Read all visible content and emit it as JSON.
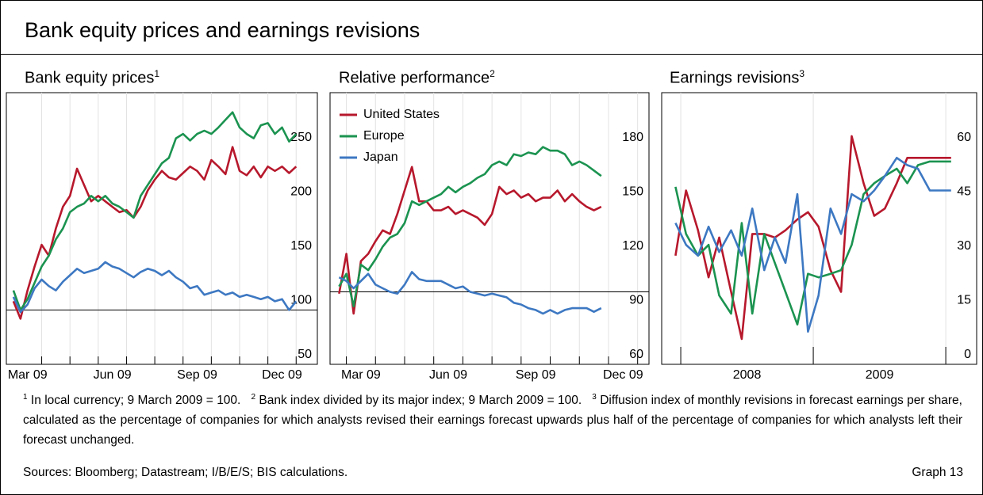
{
  "title": "Bank equity prices and earnings revisions",
  "chart_data": [
    {
      "type": "line",
      "title": "Bank equity prices",
      "title_note": "1",
      "x": [
        3.0,
        3.25,
        3.5,
        3.75,
        4.0,
        4.25,
        4.5,
        4.75,
        5.0,
        5.25,
        5.5,
        5.75,
        6.0,
        6.25,
        6.5,
        6.75,
        7.0,
        7.25,
        7.5,
        7.75,
        8.0,
        8.25,
        8.5,
        8.75,
        9.0,
        9.25,
        9.5,
        9.75,
        10.0,
        10.25,
        10.5,
        10.75,
        11.0,
        11.25,
        11.5,
        11.75,
        12.0,
        12.25,
        12.5,
        12.75,
        13.0
      ],
      "series": [
        {
          "color": "#b7182c",
          "values": [
            108,
            92,
            118,
            140,
            160,
            150,
            175,
            195,
            205,
            230,
            215,
            200,
            205,
            200,
            195,
            190,
            192,
            185,
            195,
            210,
            220,
            228,
            222,
            220,
            226,
            232,
            228,
            220,
            238,
            232,
            225,
            250,
            228,
            224,
            232,
            222,
            232,
            228,
            232,
            226,
            232
          ]
        },
        {
          "color": "#1b9350",
          "values": [
            118,
            100,
            110,
            125,
            140,
            150,
            165,
            175,
            190,
            195,
            198,
            205,
            200,
            205,
            198,
            195,
            190,
            185,
            205,
            215,
            225,
            235,
            240,
            258,
            262,
            256,
            262,
            265,
            262,
            268,
            275,
            282,
            268,
            262,
            258,
            270,
            272,
            262,
            268,
            255,
            262
          ]
        },
        {
          "color": "#3d78c2",
          "values": [
            112,
            98,
            105,
            120,
            128,
            122,
            118,
            126,
            132,
            138,
            134,
            136,
            138,
            144,
            140,
            138,
            134,
            130,
            135,
            138,
            136,
            132,
            136,
            130,
            126,
            120,
            122,
            114,
            116,
            118,
            114,
            116,
            112,
            114,
            112,
            110,
            112,
            108,
            110,
            100,
            108
          ]
        }
      ],
      "xlim": [
        2.75,
        13.75
      ],
      "xticks": [
        {
          "value": 3.5,
          "label": "Mar 09"
        },
        {
          "value": 6.5,
          "label": "Jun 09"
        },
        {
          "value": 9.5,
          "label": "Sep 09"
        },
        {
          "value": 12.5,
          "label": "Dec 09"
        }
      ],
      "xtick_marks": [
        4,
        5,
        6,
        7,
        8,
        9,
        10,
        11,
        12,
        13
      ],
      "ylim": [
        50,
        300
      ],
      "yticks": [
        50,
        100,
        150,
        200,
        250
      ],
      "refline": 100,
      "xgrid": true
    },
    {
      "type": "line",
      "title": "Relative performance",
      "title_note": "2",
      "x": [
        2.75,
        3.0,
        3.25,
        3.5,
        3.75,
        4.0,
        4.25,
        4.5,
        4.75,
        5.0,
        5.25,
        5.5,
        5.75,
        6.0,
        6.25,
        6.5,
        6.75,
        7.0,
        7.25,
        7.5,
        7.75,
        8.0,
        8.25,
        8.5,
        8.75,
        9.0,
        9.25,
        9.5,
        9.75,
        10.0,
        10.25,
        10.5,
        10.75,
        11.0,
        11.25,
        11.5,
        11.75
      ],
      "series": [
        {
          "name": "United States",
          "color": "#b7182c",
          "values": [
            99,
            121,
            88,
            117,
            121,
            128,
            134,
            132,
            143,
            156,
            169,
            150,
            150,
            145,
            145,
            147,
            143,
            145,
            143,
            141,
            137,
            143,
            158,
            154,
            156,
            152,
            154,
            150,
            152,
            152,
            156,
            150,
            154,
            150,
            147,
            145,
            147
          ]
        },
        {
          "name": "Europe",
          "color": "#1b9350",
          "values": [
            103,
            110,
            92,
            115,
            112,
            118,
            125,
            130,
            132,
            138,
            150,
            148,
            150,
            152,
            154,
            158,
            155,
            158,
            160,
            163,
            165,
            170,
            172,
            170,
            176,
            175,
            177,
            176,
            180,
            178,
            178,
            176,
            170,
            172,
            170,
            167,
            164
          ]
        },
        {
          "name": "Japan",
          "color": "#3d78c2",
          "values": [
            108,
            106,
            102,
            106,
            110,
            104,
            102,
            100,
            99,
            104,
            111,
            107,
            106,
            106,
            106,
            104,
            102,
            103,
            100,
            99,
            98,
            99,
            98,
            97,
            94,
            93,
            91,
            90,
            88,
            90,
            88,
            90,
            91,
            91,
            91,
            89,
            91
          ]
        }
      ],
      "xlim": [
        2.44,
        13.39
      ],
      "xticks": [
        {
          "value": 3.5,
          "label": "Mar 09"
        },
        {
          "value": 6.5,
          "label": "Jun 09"
        },
        {
          "value": 9.5,
          "label": "Sep 09"
        },
        {
          "value": 12.5,
          "label": "Dec 09"
        }
      ],
      "xtick_marks": [
        3,
        4,
        5,
        6,
        7,
        8,
        9,
        10,
        11,
        12,
        13
      ],
      "ylim": [
        60,
        210
      ],
      "yticks": [
        60,
        90,
        120,
        150,
        180
      ],
      "refline": 100,
      "xgrid": true,
      "legend": "upper left"
    },
    {
      "type": "line",
      "title": "Earnings revisions",
      "title_note": "3",
      "x": [
        2007.96,
        2008.04,
        2008.13,
        2008.21,
        2008.29,
        2008.38,
        2008.46,
        2008.54,
        2008.63,
        2008.71,
        2008.79,
        2008.88,
        2008.96,
        2009.04,
        2009.13,
        2009.21,
        2009.29,
        2009.38,
        2009.46,
        2009.54,
        2009.63,
        2009.71,
        2009.79,
        2009.88,
        2009.96,
        2010.04
      ],
      "series": [
        {
          "color": "#b7182c",
          "values": [
            30,
            48,
            37,
            24,
            35,
            20,
            7,
            36,
            36,
            35,
            37,
            40,
            42,
            38,
            26,
            20,
            63,
            50,
            41,
            43,
            50,
            57,
            57,
            57,
            57,
            57
          ]
        },
        {
          "color": "#1b9350",
          "values": [
            49,
            36,
            30,
            33,
            19,
            14,
            39,
            14,
            36,
            28,
            20,
            11,
            25,
            24,
            25,
            26,
            33,
            47,
            50,
            52,
            54,
            50,
            55,
            56,
            56,
            56
          ]
        },
        {
          "color": "#3d78c2",
          "values": [
            39,
            33,
            30,
            38,
            31,
            37,
            30,
            43,
            26,
            35,
            28,
            47,
            9,
            19,
            43,
            36,
            47,
            45,
            48,
            52,
            57,
            55,
            54,
            48,
            48,
            48
          ]
        }
      ],
      "xlim": [
        2007.856,
        2010.233
      ],
      "xticks": [
        {
          "value": 2008.5,
          "label": "2008"
        },
        {
          "value": 2009.5,
          "label": "2009"
        }
      ],
      "xtick_marks": [
        2008,
        2009,
        2010
      ],
      "ylim": [
        0,
        75
      ],
      "yticks": [
        0,
        15,
        30,
        45,
        60
      ],
      "xgrid": true
    }
  ],
  "footnotes": [
    {
      "marker": "1",
      "text": "In local currency; 9 March 2009 = 100."
    },
    {
      "marker": "2",
      "text": "Bank index divided by its major index; 9 March 2009 = 100."
    },
    {
      "marker": "3",
      "text": "Diffusion index of monthly revisions in forecast earnings per share, calculated as the percentage of companies for which analysts revised their earnings forecast upwards plus half of the percentage of companies for which analysts left their forecast unchanged."
    }
  ],
  "sources": "Sources: Bloomberg; Datastream; I/B/E/S; BIS calculations.",
  "graph_label": "Graph 13"
}
